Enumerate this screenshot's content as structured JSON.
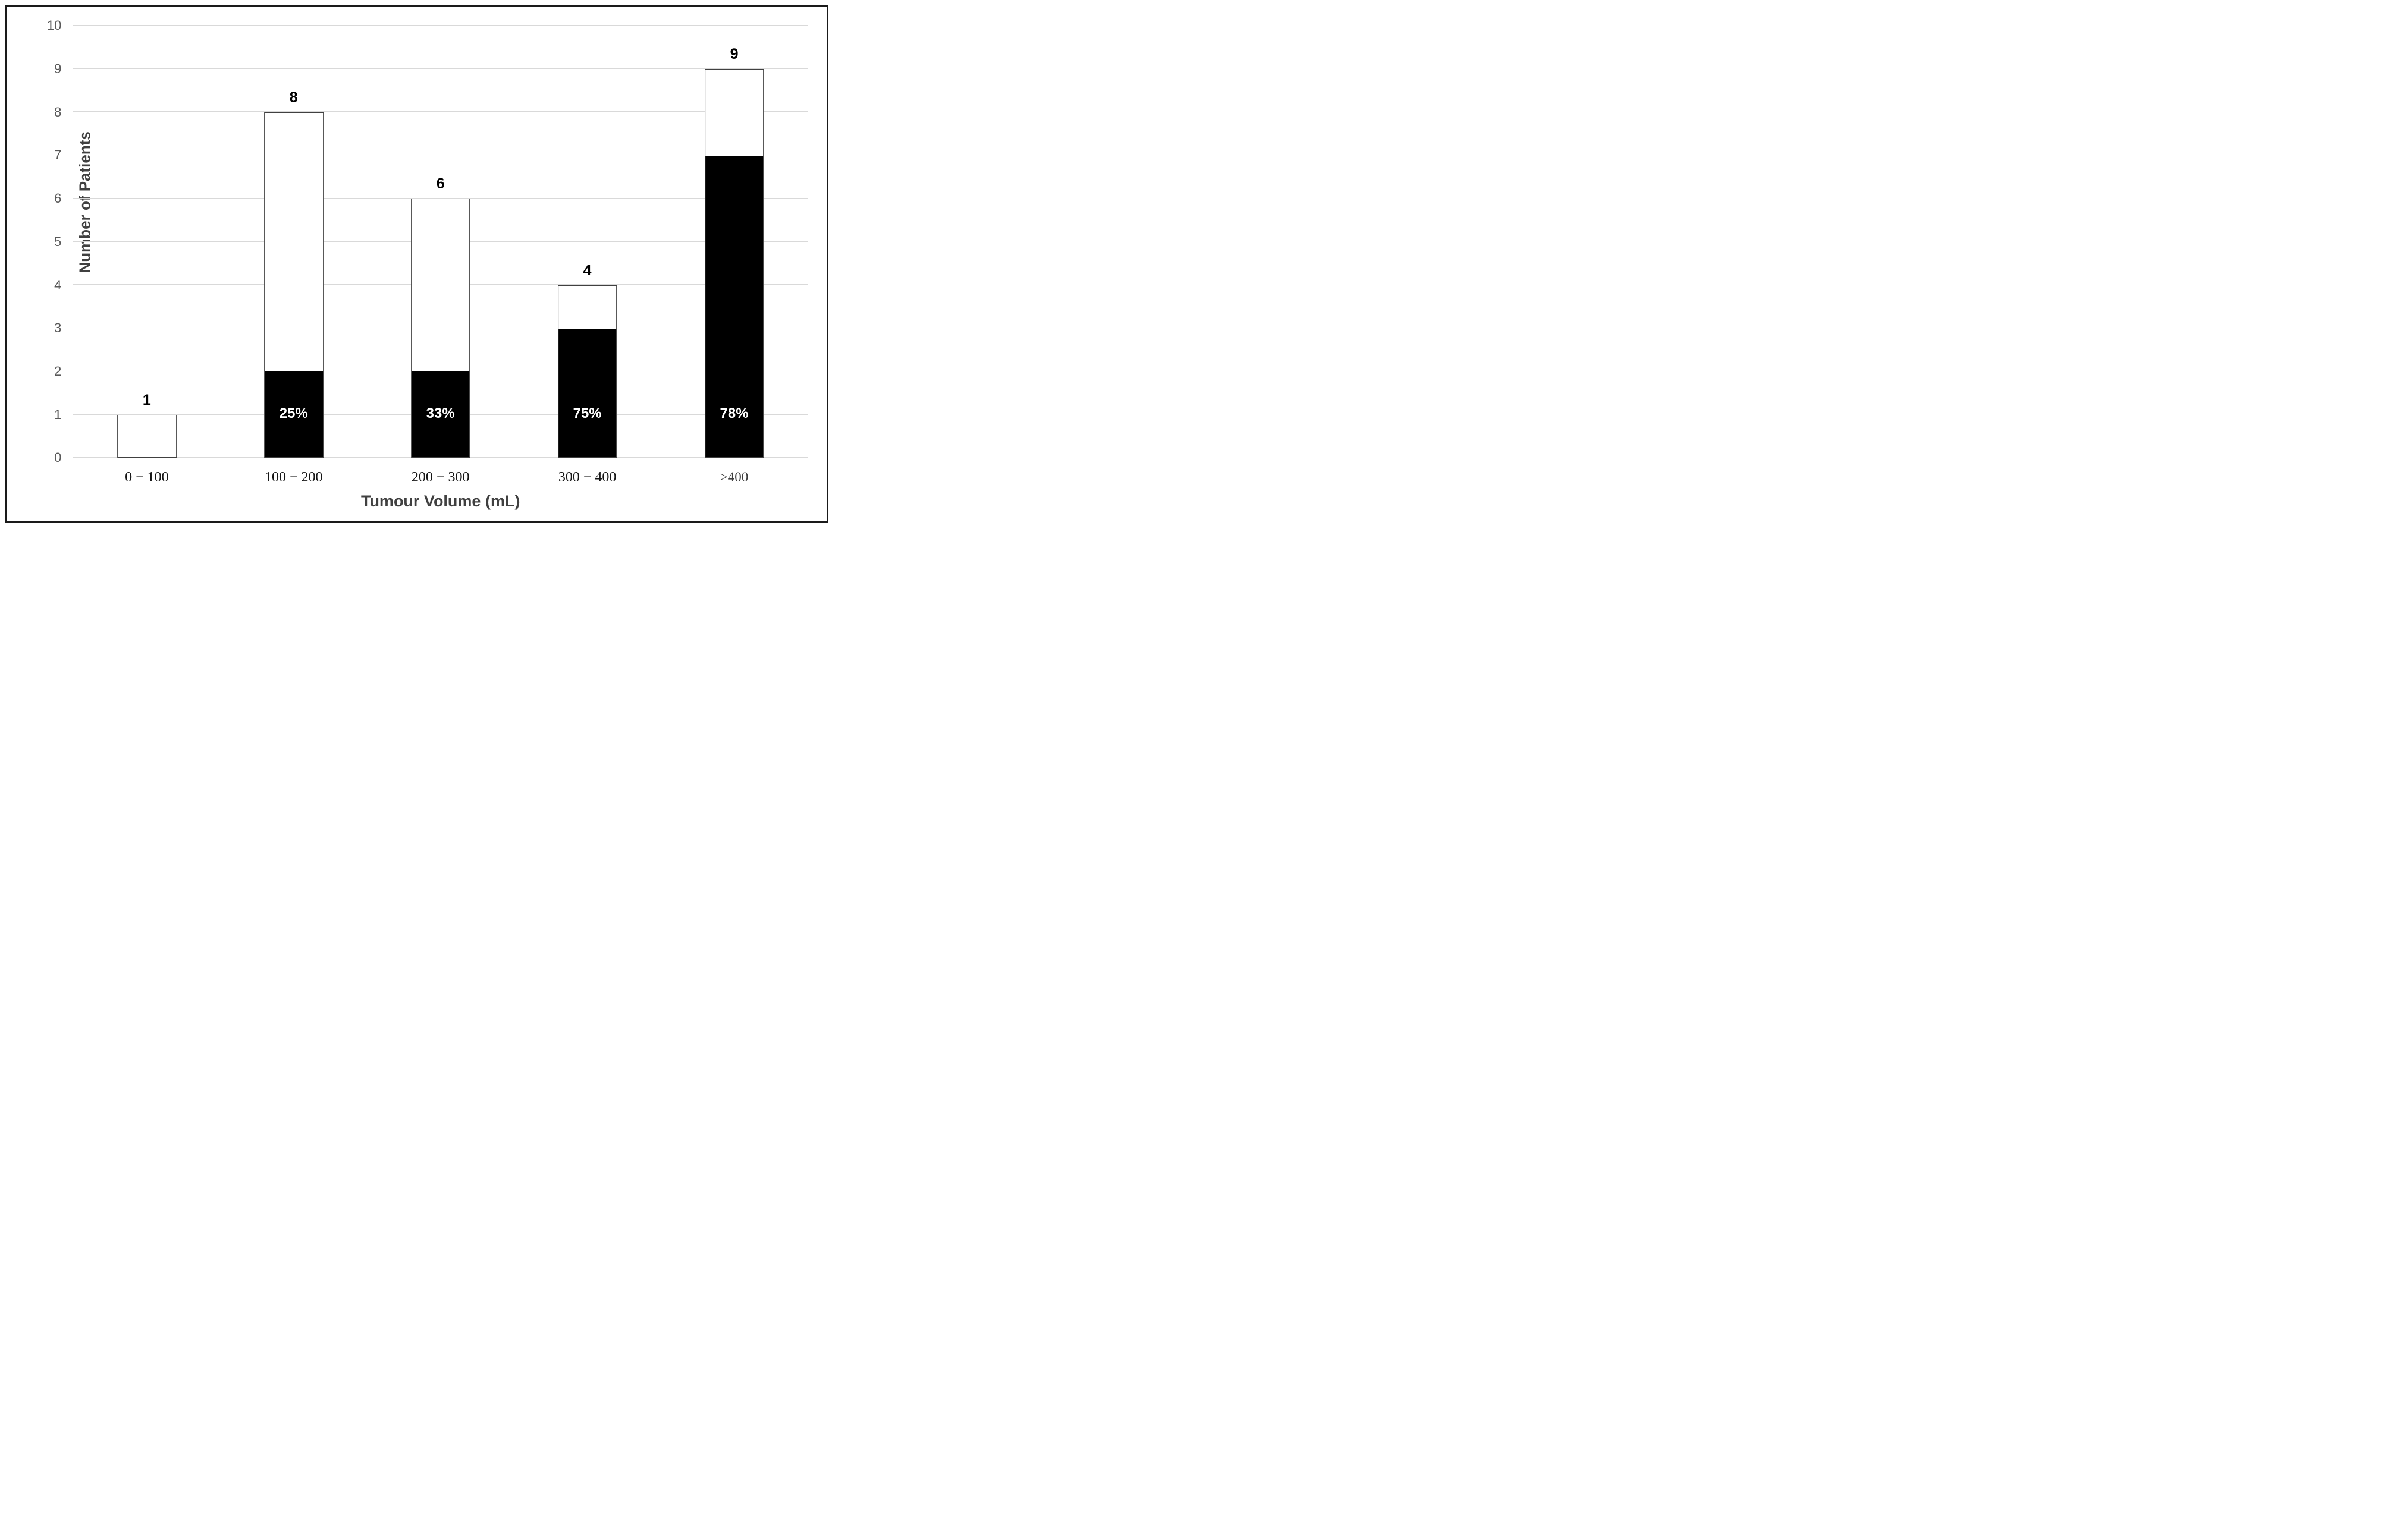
{
  "figure": {
    "background": "#ffffff",
    "border_color": "#1a1a1a"
  },
  "chart_data": {
    "type": "bar",
    "stacked": true,
    "title": "",
    "xlabel": "Tumour Volume (mL)",
    "ylabel": "Number of Patients",
    "categories": [
      "0 − 100",
      "100 − 200",
      "200 − 300",
      "300 − 400",
      ">400"
    ],
    "totals": [
      1,
      8,
      6,
      4,
      9
    ],
    "total_labels": [
      "1",
      "8",
      "6",
      "4",
      "9"
    ],
    "series": [
      {
        "name": "black-segment",
        "color": "#000000",
        "values": [
          0,
          2,
          2,
          3,
          7
        ]
      },
      {
        "name": "white-segment",
        "color": "#ffffff",
        "values": [
          1,
          6,
          4,
          1,
          2
        ]
      }
    ],
    "segment_percent_labels": [
      "",
      "25%",
      "33%",
      "75%",
      "78%"
    ],
    "ylim": [
      0,
      10
    ],
    "yticks": [
      0,
      1,
      2,
      3,
      4,
      5,
      6,
      7,
      8,
      9,
      10
    ],
    "grid": "horizontal",
    "legend": "none",
    "gridline_color": "#d9d9d9",
    "bar_border_color": "#404040",
    "tick_label_color": "#595959",
    "axis_title_color": "#404040",
    "value_label_color": "#000000",
    "pct_label_color": "#ffffff"
  }
}
